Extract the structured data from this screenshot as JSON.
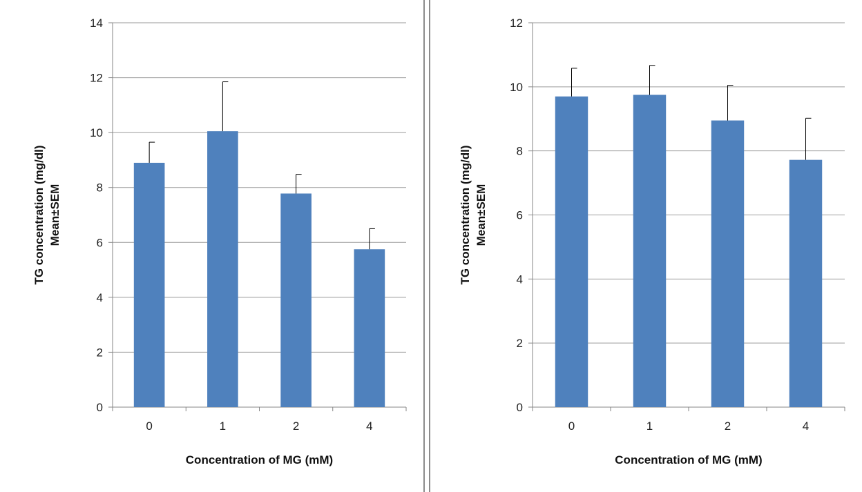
{
  "chart_data": [
    {
      "type": "bar",
      "categories": [
        "0",
        "1",
        "2",
        "4"
      ],
      "values": [
        8.9,
        10.05,
        7.78,
        5.75
      ],
      "errors": [
        0.75,
        1.8,
        0.7,
        0.75
      ],
      "ylim": [
        0,
        14
      ],
      "yticks": [
        0,
        2,
        4,
        6,
        8,
        10,
        12,
        14
      ],
      "xlabel": "Concentration of MG (mM)",
      "ylabel_line1": "TG concentration (mg/dl)",
      "ylabel_line2": "Mean±SEM",
      "grid": true,
      "bar_color": "#4f81bd"
    },
    {
      "type": "bar",
      "categories": [
        "0",
        "1",
        "2",
        "4"
      ],
      "values": [
        9.7,
        9.75,
        8.95,
        7.72
      ],
      "errors": [
        0.88,
        0.92,
        1.1,
        1.3
      ],
      "ylim": [
        0,
        12
      ],
      "yticks": [
        0,
        2,
        4,
        6,
        8,
        10,
        12
      ],
      "xlabel": "Concentration of MG (mM)",
      "ylabel_line1": "TG concentration (mg/dl)",
      "ylabel_line2": "Mean±SEM",
      "grid": true,
      "bar_color": "#4f81bd"
    }
  ]
}
